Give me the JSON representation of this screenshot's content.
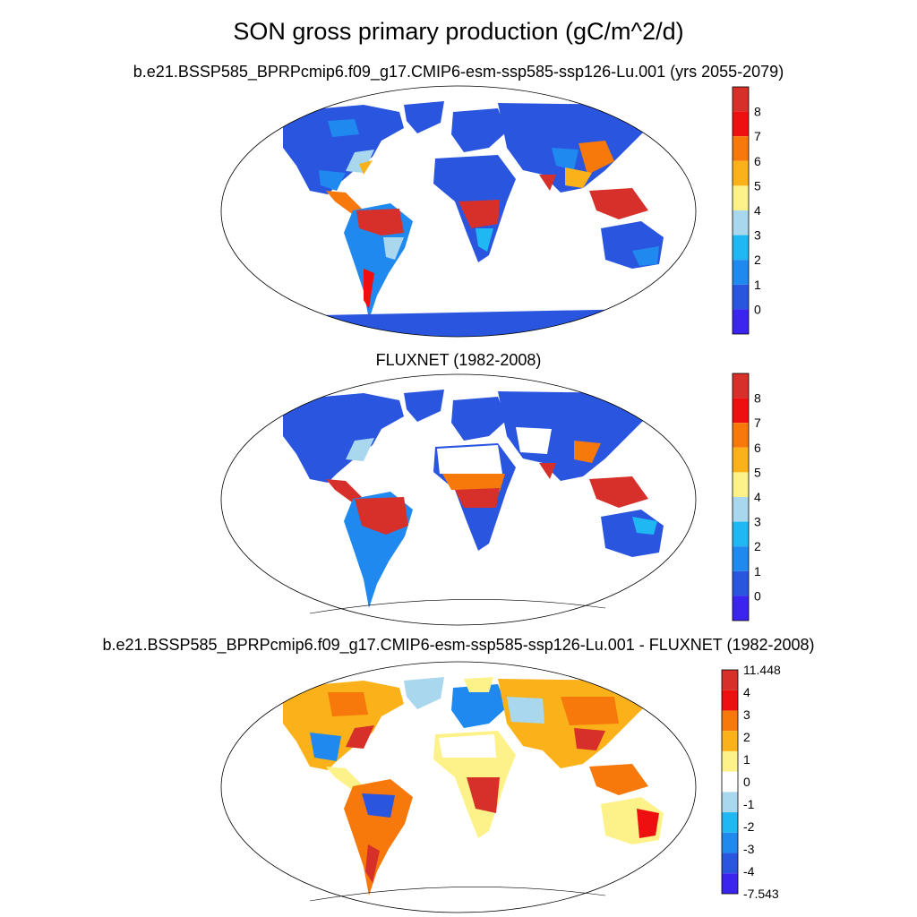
{
  "title": "SON gross primary production (gC/m^2/d)",
  "panels": [
    {
      "title": "b.e21.BSSP585_BPRPcmip6.f09_g17.CMIP6-esm-ssp585-ssp126-Lu.001 (yrs 2055-2079)",
      "colorbar": {
        "labels": [
          "8",
          "7",
          "6",
          "5",
          "4",
          "3",
          "2",
          "1",
          "0"
        ],
        "colors": [
          "#d7302a",
          "#ee1010",
          "#f7780b",
          "#fbb21a",
          "#fdf28a",
          "#a8d7ee",
          "#1fb8f3",
          "#1f89ef",
          "#2a55df",
          "#3c24ef"
        ]
      }
    },
    {
      "title": "FLUXNET (1982-2008)",
      "colorbar": {
        "labels": [
          "8",
          "7",
          "6",
          "5",
          "4",
          "3",
          "2",
          "1",
          "0"
        ],
        "colors": [
          "#d7302a",
          "#ee1010",
          "#f7780b",
          "#fbb21a",
          "#fdf28a",
          "#a8d7ee",
          "#1fb8f3",
          "#1f89ef",
          "#2a55df",
          "#3c24ef"
        ]
      }
    },
    {
      "title": "b.e21.BSSP585_BPRPcmip6.f09_g17.CMIP6-esm-ssp585-ssp126-Lu.001 - FLUXNET (1982-2008)",
      "colorbar": {
        "labels": [
          "11.448",
          "4",
          "3",
          "2",
          "1",
          "0",
          "-1",
          "-2",
          "-3",
          "-4",
          "-7.543"
        ],
        "colors": [
          "#d7302a",
          "#ee1010",
          "#f7780b",
          "#fbb21a",
          "#fdf28a",
          "#ffffff",
          "#a8d7ee",
          "#1fb8f3",
          "#1f89ef",
          "#2a55df",
          "#3c24ef"
        ]
      }
    }
  ]
}
